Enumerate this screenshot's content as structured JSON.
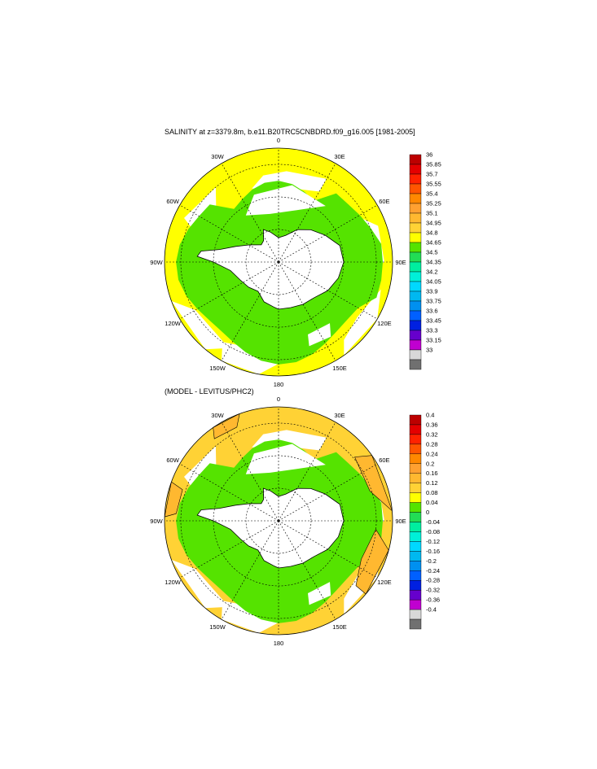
{
  "panels": [
    {
      "title": "SALINITY at z=3379.8m, b.e11.B20TRC5CNBDRD.f09_g16.005 [1981-2005]",
      "lon_labels": [
        "0",
        "30E",
        "60E",
        "90E",
        "120E",
        "150E",
        "180",
        "150W",
        "120W",
        "90W",
        "60W",
        "30W"
      ],
      "colorbar": {
        "labels": [
          "36",
          "35.85",
          "35.7",
          "35.55",
          "35.4",
          "35.25",
          "35.1",
          "34.95",
          "34.8",
          "34.65",
          "34.5",
          "34.35",
          "34.2",
          "34.05",
          "33.9",
          "33.75",
          "33.6",
          "33.45",
          "33.3",
          "33.15",
          "33"
        ],
        "colors": [
          "#bd0000",
          "#e40000",
          "#ff2200",
          "#ff5500",
          "#ff8800",
          "#ffa030",
          "#ffb830",
          "#ffd235",
          "#ffff00",
          "#55e300",
          "#22dd55",
          "#00eea0",
          "#00f0d8",
          "#00d8ff",
          "#00b8f0",
          "#0090f0",
          "#0060ff",
          "#0020e0",
          "#6600cc",
          "#c000d0",
          "#d8d8d8",
          "#707070"
        ]
      }
    },
    {
      "title": "(MODEL - LEVITUS/PHC2)",
      "lon_labels": [
        "0",
        "30E",
        "60E",
        "90E",
        "120E",
        "150E",
        "180",
        "150W",
        "120W",
        "90W",
        "60W",
        "30W"
      ],
      "colorbar": {
        "labels": [
          "0.4",
          "0.36",
          "0.32",
          "0.28",
          "0.24",
          "0.2",
          "0.16",
          "0.12",
          "0.08",
          "0.04",
          "0",
          "-0.04",
          "-0.08",
          "-0.12",
          "-0.16",
          "-0.2",
          "-0.24",
          "-0.28",
          "-0.32",
          "-0.36",
          "-0.4"
        ],
        "colors": [
          "#bd0000",
          "#e40000",
          "#ff2200",
          "#ff5500",
          "#ff8800",
          "#ffa030",
          "#ffb830",
          "#ffd235",
          "#ffff00",
          "#55e300",
          "#22dd55",
          "#00eea0",
          "#00f0d8",
          "#00d8ff",
          "#00b8f0",
          "#0090f0",
          "#0060ff",
          "#0020e0",
          "#6600cc",
          "#c000d0",
          "#d8d8d8",
          "#707070"
        ]
      }
    }
  ],
  "colors": {
    "antarctica": "#ffffff",
    "high_salinity": "#ffff00",
    "mid_salinity": "#55e300",
    "masked": "#ffffff",
    "diff_positive": "#ffd235",
    "diff_warm": "#ffb830"
  }
}
